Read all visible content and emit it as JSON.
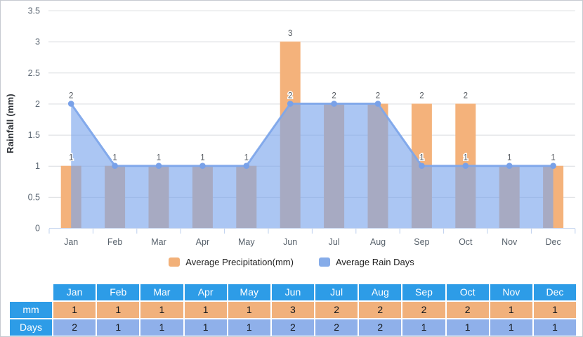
{
  "chart_data": {
    "type": "combo",
    "categories": [
      "Jan",
      "Feb",
      "Mar",
      "Apr",
      "May",
      "Jun",
      "Jul",
      "Aug",
      "Sep",
      "Oct",
      "Nov",
      "Dec"
    ],
    "series": [
      {
        "name": "Average Precipitation(mm)",
        "type": "bar",
        "values": [
          1,
          1,
          1,
          1,
          1,
          3,
          2,
          2,
          2,
          2,
          1,
          1
        ],
        "color": "#f4b27b"
      },
      {
        "name": "Average Rain Days",
        "type": "area",
        "values": [
          2,
          1,
          1,
          1,
          1,
          2,
          2,
          2,
          1,
          1,
          1,
          1
        ],
        "color": "#86ace9",
        "line_color": "#7ea6ea",
        "fill_color": "#7aa5ec",
        "fill_opacity": 0.63,
        "point_color": "#79a1e8"
      }
    ],
    "ylabel": "Rainfall (mm)",
    "ylim": [
      0,
      3.5
    ],
    "ytick_step": 0.5,
    "ytick_labels": [
      "0",
      "0.5",
      "1",
      "1.5",
      "2",
      "2.5",
      "3",
      "3.5"
    ],
    "grid": true,
    "legend_position": "bottom"
  },
  "legend": {
    "items": [
      {
        "label": "Average Precipitation(mm)",
        "color": "#f2b078"
      },
      {
        "label": "Average Rain Days",
        "color": "#86ace9"
      }
    ]
  },
  "table": {
    "columns": [
      "Jan",
      "Feb",
      "Mar",
      "Apr",
      "May",
      "Jun",
      "Jul",
      "Aug",
      "Sep",
      "Oct",
      "Nov",
      "Dec"
    ],
    "rows": [
      {
        "label": "mm",
        "values": [
          1,
          1,
          1,
          1,
          1,
          3,
          2,
          2,
          2,
          2,
          1,
          1
        ],
        "cell_color": "#f1b17c"
      },
      {
        "label": "Days",
        "values": [
          2,
          1,
          1,
          1,
          1,
          2,
          2,
          2,
          1,
          1,
          1,
          1
        ],
        "cell_color": "#8fb0ea"
      }
    ],
    "header_color": "#2d9ce7",
    "header_text_color": "#ffffff",
    "value_text_color": "#14181c"
  }
}
